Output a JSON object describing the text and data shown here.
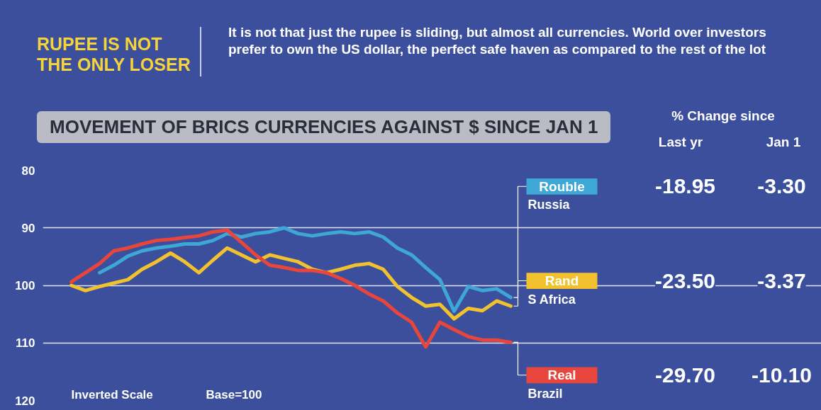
{
  "chart_data": {
    "type": "line",
    "title": "MOVEMENT OF BRICS CURRENCIES AGAINST $ SINCE JAN 1",
    "categories": [
      null,
      null,
      null,
      null,
      null,
      null,
      null,
      null,
      null,
      null,
      null,
      null,
      null,
      null,
      null,
      null,
      null,
      null,
      null,
      null,
      null,
      null,
      null,
      null,
      null,
      null,
      null,
      null,
      null,
      null,
      null,
      null
    ],
    "series": [
      {
        "name": "Rouble",
        "color": "#3ea7d6",
        "values": [
          null,
          null,
          97.8,
          96.5,
          94.9,
          94,
          93.5,
          93.2,
          92.8,
          92.8,
          92.2,
          91,
          91.6,
          91,
          90.7,
          90,
          91,
          91.4,
          91,
          90.7,
          91,
          90.7,
          91.6,
          93.5,
          94.7,
          96.9,
          99,
          104.5,
          100.2,
          100.9,
          100.6,
          102.1
        ]
      },
      {
        "name": "Rand",
        "color": "#f2c12e",
        "values": [
          100,
          100.9,
          100.2,
          99.6,
          99,
          97.2,
          95.9,
          94.4,
          95.9,
          97.8,
          95.6,
          93.5,
          94.7,
          95.9,
          94.7,
          95.3,
          95.9,
          97.2,
          97.8,
          97.2,
          96.5,
          96.2,
          97.2,
          100.2,
          102.1,
          103.6,
          103.3,
          105.8,
          104,
          104.4,
          102.7,
          103.6
        ]
      },
      {
        "name": "Real",
        "color": "#e8453c",
        "values": [
          99.4,
          97.8,
          96.2,
          94,
          93.5,
          92.8,
          92.2,
          92,
          91.7,
          91.4,
          90.7,
          90.4,
          92.5,
          94.7,
          96.5,
          96.9,
          97.4,
          97.4,
          97.8,
          98.8,
          100,
          101.5,
          102.7,
          104.8,
          106.4,
          110.7,
          106.4,
          107.7,
          108.9,
          109.5,
          109.5,
          109.9
        ]
      }
    ],
    "ylim": [
      120,
      80
    ],
    "yticks": [
      80,
      90,
      100,
      110,
      120
    ],
    "grid": "y",
    "legend": "right",
    "line_style": "solid",
    "marker": "none",
    "annotations": [
      "RUPEE IS NOT THE ONLY LOSER",
      "It is not that just the rupee is sliding, but almost all currencies. World over investors prefer to own the US dollar, the perfect safe haven as compared to the rest of the lot",
      "% Change since",
      "Last yr",
      "Jan 1",
      "Russia",
      "-18.95",
      "-3.30",
      "S Africa",
      "-23.50",
      "-3.37",
      "Brazil",
      "-29.70",
      "-10.10",
      "Inverted Scale",
      "Base=100"
    ]
  }
}
